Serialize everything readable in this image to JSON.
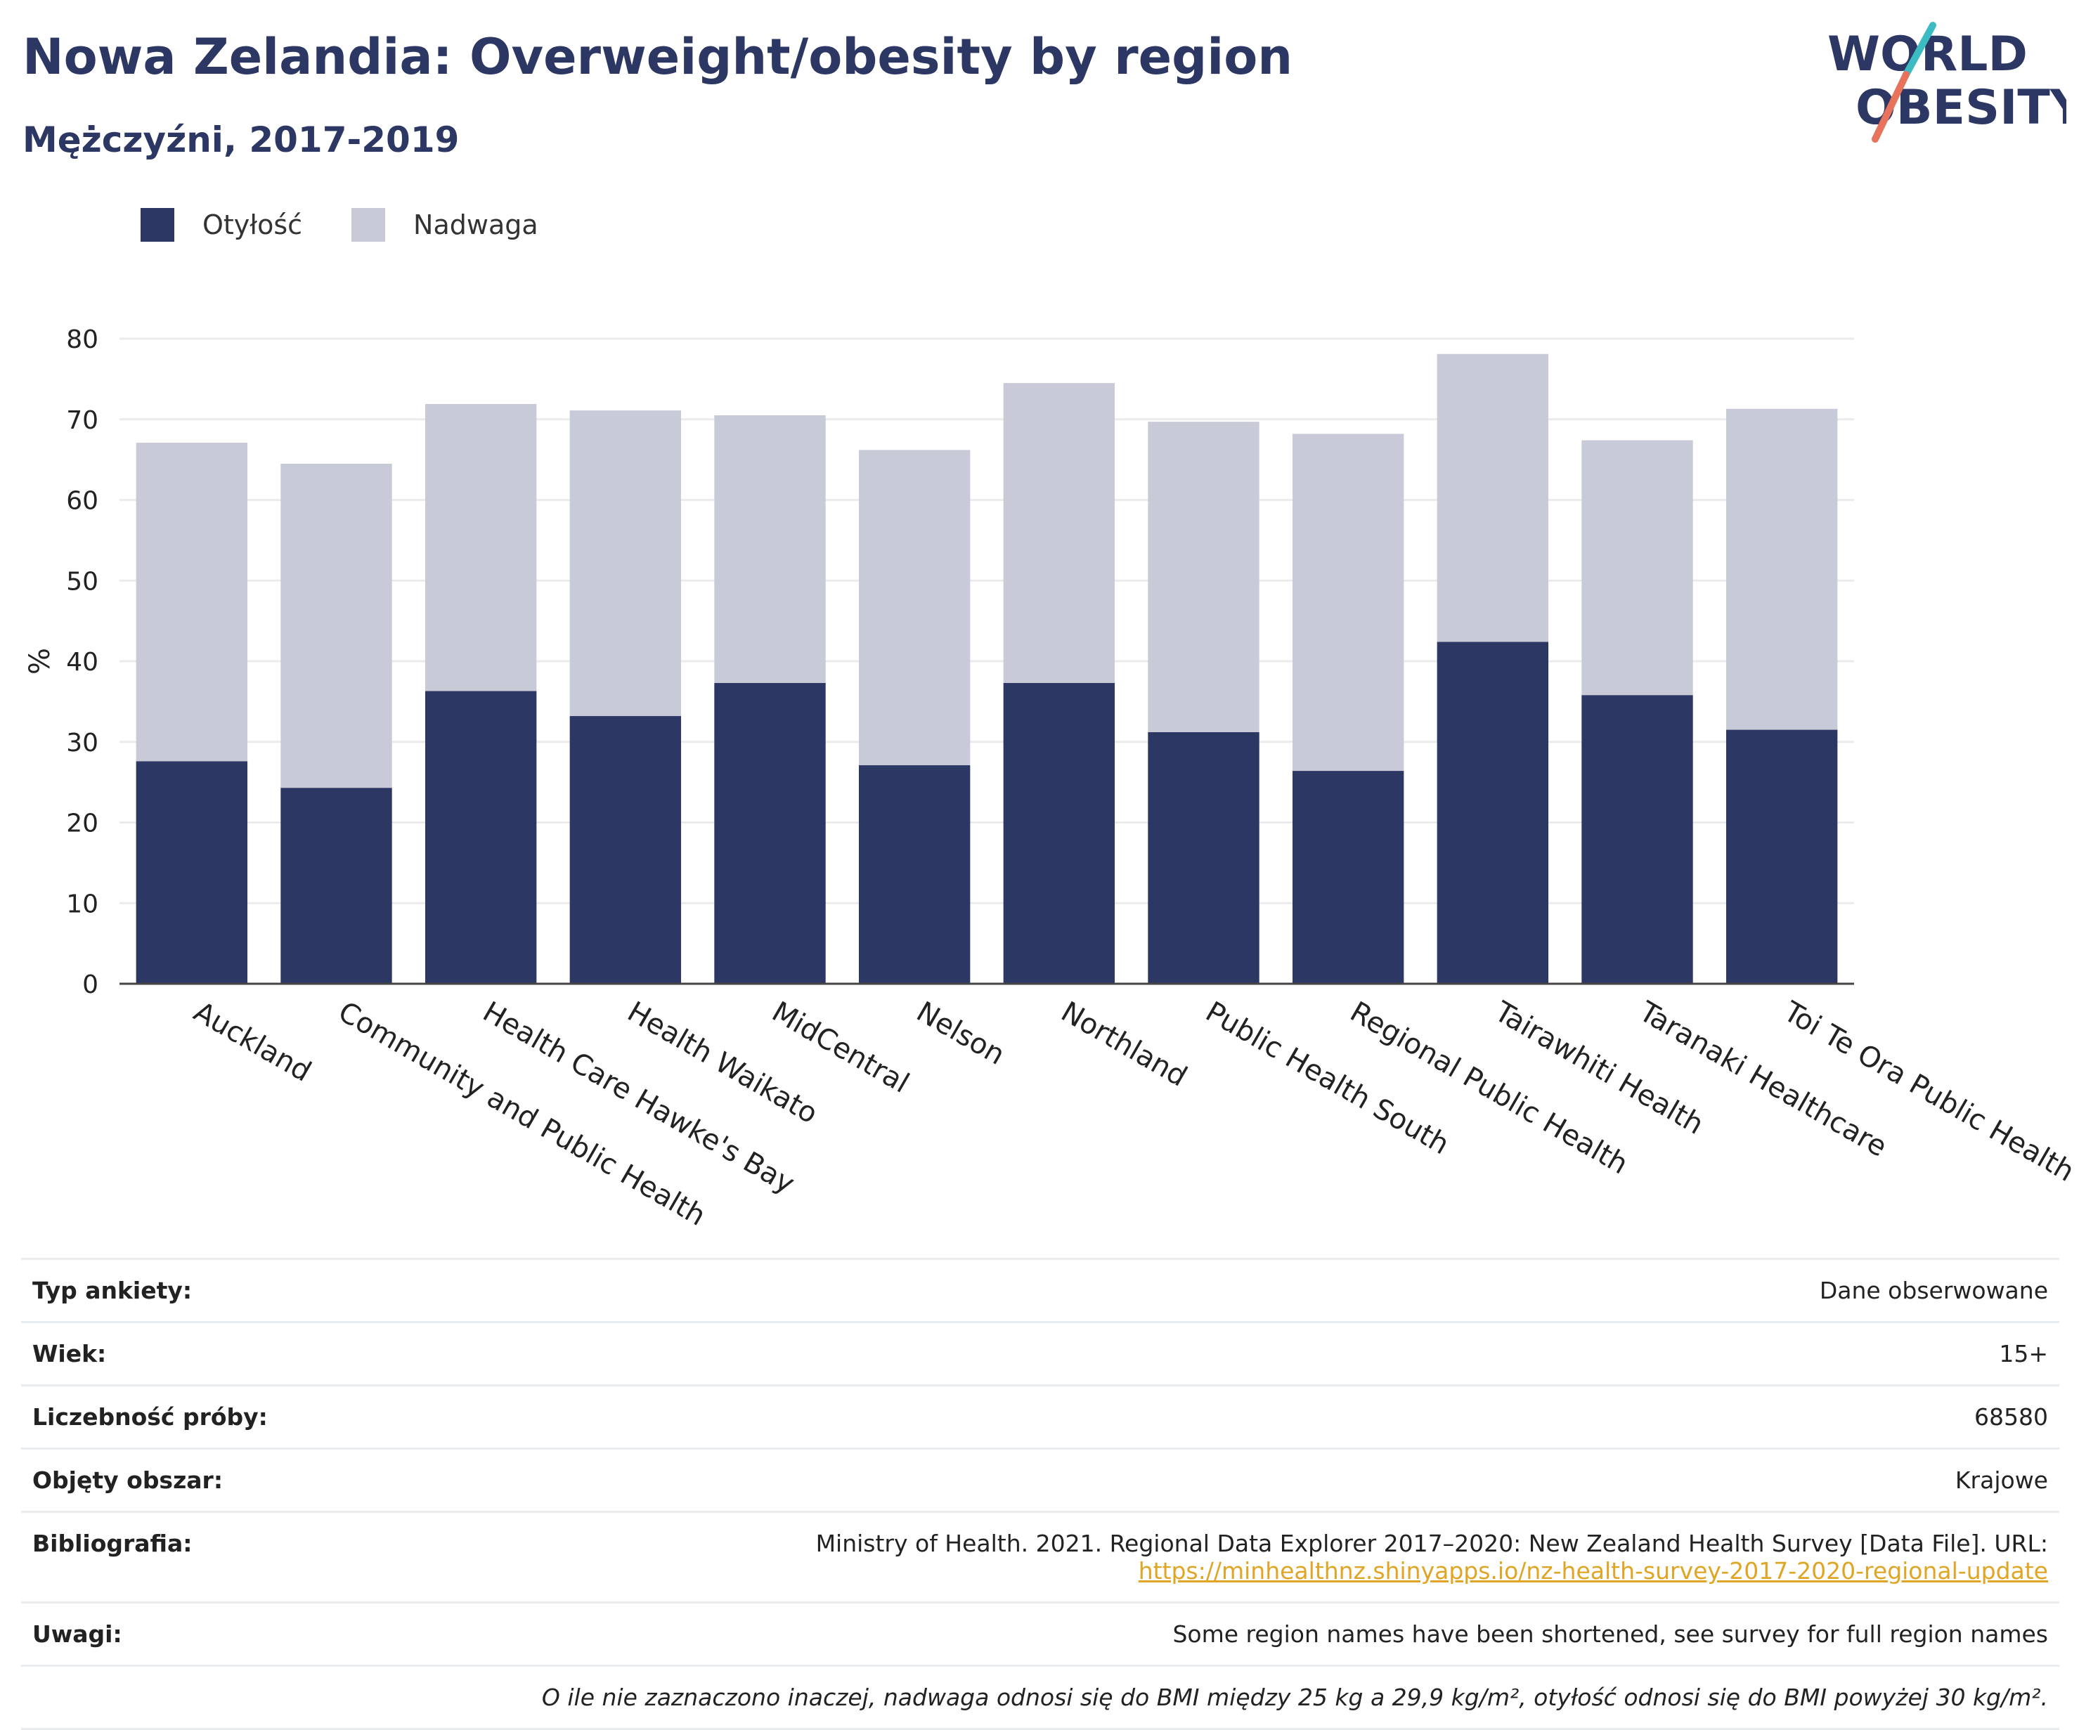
{
  "header": {
    "title": "Nowa Zelandia: Overweight/obesity by region",
    "subtitle": "Mężczyźni, 2017-2019"
  },
  "logo": {
    "line1": "WORLD",
    "line2": "OBESITY",
    "icon": "world-obesity-logo"
  },
  "colors": {
    "obesity": "#2c3763",
    "overweight": "#c9cad7",
    "title": "#2c3763",
    "link": "#e0a524"
  },
  "chart_data": {
    "type": "bar",
    "stacked": true,
    "categories": [
      "Auckland",
      "Community and Public Health",
      "Health Care Hawke's Bay",
      "Health Waikato",
      "MidCentral",
      "Nelson",
      "Northland",
      "Public Health South",
      "Regional Public Health",
      "Tairawhiti Health",
      "Taranaki Healthcare",
      "Toi Te Ora Public Health"
    ],
    "series": [
      {
        "name": "Otyłość",
        "values": [
          27.6,
          24.3,
          36.3,
          33.2,
          37.3,
          27.1,
          37.3,
          31.2,
          26.4,
          42.4,
          35.8,
          31.5
        ]
      },
      {
        "name": "Nadwaga",
        "values": [
          39.5,
          40.2,
          35.6,
          37.9,
          33.2,
          39.1,
          37.2,
          38.5,
          41.8,
          35.7,
          31.6,
          39.8
        ]
      }
    ],
    "ylabel": "%",
    "ylim": [
      0,
      80
    ],
    "yticks": [
      0,
      10,
      20,
      30,
      40,
      50,
      60,
      70,
      80
    ],
    "grid": true,
    "legend": "top-left"
  },
  "meta": [
    {
      "key": "Typ ankiety:",
      "value": "Dane obserwowane"
    },
    {
      "key": "Wiek:",
      "value": "15+"
    },
    {
      "key": "Liczebność próby:",
      "value": "68580"
    },
    {
      "key": "Objęty obszar:",
      "value": "Krajowe"
    }
  ],
  "bibliography": {
    "key": "Bibliografia:",
    "text": "Ministry of Health. 2021. Regional Data Explorer 2017–2020: New Zealand Health Survey [Data File]. URL:",
    "link": "https://minhealthnz.shinyapps.io/nz-health-survey-2017-2020-regional-update"
  },
  "notes": {
    "key": "Uwagi:",
    "value": "Some region names have been shortened, see survey for full region names"
  },
  "footnote": "O ile nie zaznaczono inaczej, nadwaga odnosi się do BMI między 25 kg a 29,9 kg/m², otyłość odnosi się do BMI powyżej 30 kg/m²."
}
